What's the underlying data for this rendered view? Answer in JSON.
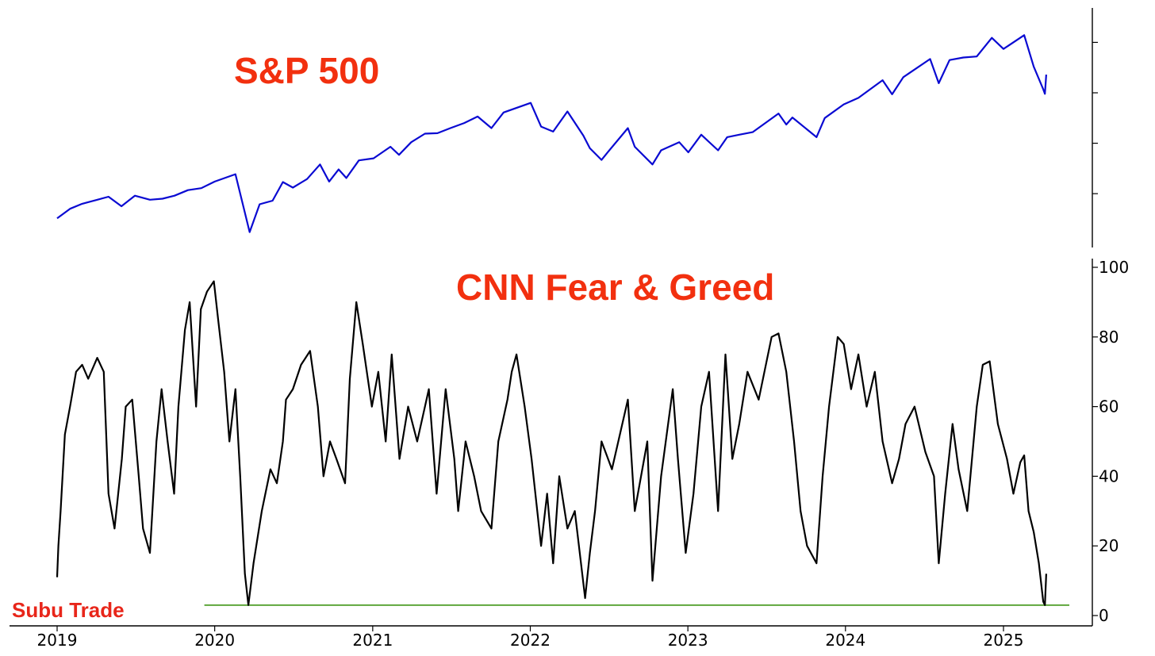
{
  "chart_data": [
    {
      "type": "line",
      "title": "S&P 500",
      "xlabel": "",
      "ylabel": "",
      "ylim": [
        2200,
        6400
      ],
      "y_tick_labels_visible": false,
      "grid": false,
      "series": [
        {
          "color": "#0a0ad2",
          "x": [
            "2019-01-02",
            "2019-02-01",
            "2019-03-01",
            "2019-04-01",
            "2019-05-01",
            "2019-05-31",
            "2019-07-01",
            "2019-08-05",
            "2019-09-03",
            "2019-10-01",
            "2019-11-01",
            "2019-12-02",
            "2020-01-02",
            "2020-02-19",
            "2020-03-23",
            "2020-04-15",
            "2020-05-15",
            "2020-06-08",
            "2020-07-01",
            "2020-08-03",
            "2020-09-02",
            "2020-09-23",
            "2020-10-15",
            "2020-11-02",
            "2020-12-01",
            "2021-01-04",
            "2021-02-12",
            "2021-03-04",
            "2021-04-01",
            "2021-05-03",
            "2021-06-01",
            "2021-07-01",
            "2021-08-02",
            "2021-09-02",
            "2021-10-04",
            "2021-11-01",
            "2022-01-03",
            "2022-01-27",
            "2022-02-24",
            "2022-03-29",
            "2022-05-05",
            "2022-05-20",
            "2022-06-16",
            "2022-07-01",
            "2022-08-16",
            "2022-09-01",
            "2022-10-12",
            "2022-11-01",
            "2022-12-13",
            "2023-01-03",
            "2023-02-02",
            "2023-03-13",
            "2023-04-03",
            "2023-05-01",
            "2023-06-01",
            "2023-07-31",
            "2023-08-18",
            "2023-09-01",
            "2023-10-27",
            "2023-11-15",
            "2023-12-29",
            "2024-02-01",
            "2024-03-28",
            "2024-04-19",
            "2024-05-15",
            "2024-07-16",
            "2024-08-05",
            "2024-08-30",
            "2024-10-01",
            "2024-11-01",
            "2024-12-06",
            "2025-01-02",
            "2025-02-19",
            "2025-03-13",
            "2025-04-04",
            "2025-04-08",
            "2025-04-11"
          ],
          "values": [
            2510,
            2700,
            2800,
            2870,
            2940,
            2750,
            2960,
            2880,
            2900,
            2960,
            3070,
            3110,
            3240,
            3386,
            2237,
            2790,
            2860,
            3230,
            3120,
            3290,
            3580,
            3240,
            3480,
            3310,
            3660,
            3700,
            3930,
            3770,
            4020,
            4190,
            4200,
            4300,
            4400,
            4530,
            4300,
            4610,
            4800,
            4330,
            4230,
            4630,
            4150,
            3900,
            3670,
            3830,
            4300,
            3930,
            3580,
            3860,
            4020,
            3820,
            4170,
            3860,
            4120,
            4170,
            4220,
            4590,
            4370,
            4510,
            4120,
            4500,
            4770,
            4900,
            5250,
            4970,
            5310,
            5670,
            5190,
            5650,
            5700,
            5720,
            6090,
            5870,
            6144,
            5520,
            5070,
            4980,
            5360
          ]
        }
      ]
    },
    {
      "type": "line",
      "title": "CNN Fear & Greed",
      "xlabel": "",
      "ylabel": "",
      "ylim": [
        0,
        100
      ],
      "x_ticks": [
        "2019",
        "2020",
        "2021",
        "2022",
        "2023",
        "2024",
        "2025"
      ],
      "y_ticks": [
        "0",
        "20",
        "40",
        "60",
        "80",
        "100"
      ],
      "grid": false,
      "series": [
        {
          "color": "#000000",
          "x": [
            "2019-01-02",
            "2019-01-05",
            "2019-01-10",
            "2019-01-20",
            "2019-02-01",
            "2019-02-15",
            "2019-03-01",
            "2019-03-15",
            "2019-04-05",
            "2019-04-20",
            "2019-05-01",
            "2019-05-15",
            "2019-06-01",
            "2019-06-10",
            "2019-06-25",
            "2019-07-10",
            "2019-07-20",
            "2019-08-05",
            "2019-08-20",
            "2019-09-01",
            "2019-09-15",
            "2019-09-30",
            "2019-10-10",
            "2019-10-25",
            "2019-11-05",
            "2019-11-20",
            "2019-12-01",
            "2019-12-15",
            "2019-12-31",
            "2020-01-10",
            "2020-01-24",
            "2020-02-05",
            "2020-02-19",
            "2020-03-01",
            "2020-03-12",
            "2020-03-20",
            "2020-04-01",
            "2020-04-20",
            "2020-05-10",
            "2020-05-25",
            "2020-06-08",
            "2020-06-15",
            "2020-07-01",
            "2020-07-20",
            "2020-08-10",
            "2020-08-28",
            "2020-09-10",
            "2020-09-25",
            "2020-10-10",
            "2020-10-30",
            "2020-11-10",
            "2020-11-25",
            "2020-12-10",
            "2020-12-31",
            "2021-01-15",
            "2021-02-01",
            "2021-02-15",
            "2021-03-05",
            "2021-03-25",
            "2021-04-15",
            "2021-05-12",
            "2021-05-30",
            "2021-06-20",
            "2021-07-10",
            "2021-07-19",
            "2021-08-05",
            "2021-08-25",
            "2021-09-10",
            "2021-10-04",
            "2021-10-20",
            "2021-11-10",
            "2021-11-20",
            "2021-12-01",
            "2021-12-20",
            "2022-01-05",
            "2022-01-27",
            "2022-02-10",
            "2022-02-24",
            "2022-03-10",
            "2022-03-29",
            "2022-04-15",
            "2022-05-09",
            "2022-05-20",
            "2022-06-01",
            "2022-06-16",
            "2022-07-10",
            "2022-08-16",
            "2022-09-01",
            "2022-09-30",
            "2022-10-12",
            "2022-11-01",
            "2022-11-28",
            "2022-12-10",
            "2022-12-28",
            "2023-01-15",
            "2023-02-02",
            "2023-02-20",
            "2023-03-13",
            "2023-03-30",
            "2023-04-15",
            "2023-05-01",
            "2023-05-20",
            "2023-06-15",
            "2023-07-15",
            "2023-07-31",
            "2023-08-18",
            "2023-09-05",
            "2023-09-20",
            "2023-10-05",
            "2023-10-27",
            "2023-11-10",
            "2023-11-25",
            "2023-12-15",
            "2023-12-29",
            "2024-01-15",
            "2024-02-01",
            "2024-02-20",
            "2024-03-10",
            "2024-03-28",
            "2024-04-19",
            "2024-05-05",
            "2024-05-20",
            "2024-06-10",
            "2024-07-05",
            "2024-07-25",
            "2024-08-05",
            "2024-08-20",
            "2024-09-06",
            "2024-09-20",
            "2024-10-10",
            "2024-11-01",
            "2024-11-15",
            "2024-12-01",
            "2024-12-20",
            "2025-01-10",
            "2025-01-25",
            "2025-02-10",
            "2025-02-19",
            "2025-03-01",
            "2025-03-13",
            "2025-03-25",
            "2025-04-04",
            "2025-04-08",
            "2025-04-11"
          ],
          "values": [
            11,
            20,
            30,
            52,
            60,
            70,
            72,
            68,
            74,
            70,
            35,
            25,
            45,
            60,
            62,
            40,
            25,
            18,
            50,
            65,
            50,
            35,
            60,
            82,
            90,
            60,
            88,
            93,
            96,
            85,
            70,
            50,
            65,
            40,
            12,
            3,
            15,
            30,
            42,
            38,
            50,
            62,
            65,
            72,
            76,
            60,
            40,
            50,
            45,
            38,
            68,
            90,
            78,
            60,
            70,
            50,
            75,
            45,
            60,
            50,
            65,
            35,
            65,
            45,
            30,
            50,
            40,
            30,
            25,
            50,
            62,
            70,
            75,
            60,
            45,
            20,
            35,
            15,
            40,
            25,
            30,
            5,
            18,
            30,
            50,
            42,
            62,
            30,
            50,
            10,
            40,
            65,
            45,
            18,
            35,
            60,
            70,
            30,
            75,
            45,
            55,
            70,
            62,
            80,
            81,
            70,
            50,
            30,
            20,
            15,
            40,
            60,
            80,
            78,
            65,
            75,
            60,
            70,
            50,
            38,
            45,
            55,
            60,
            47,
            40,
            15,
            35,
            55,
            42,
            30,
            60,
            72,
            73,
            55,
            45,
            35,
            44,
            46,
            30,
            24,
            15,
            4,
            3,
            12
          ]
        }
      ]
    }
  ],
  "watermark": "Subu Trade",
  "reference_line": {
    "value": 3,
    "x_start": "2019-12-09",
    "color": "#5fa63c"
  }
}
